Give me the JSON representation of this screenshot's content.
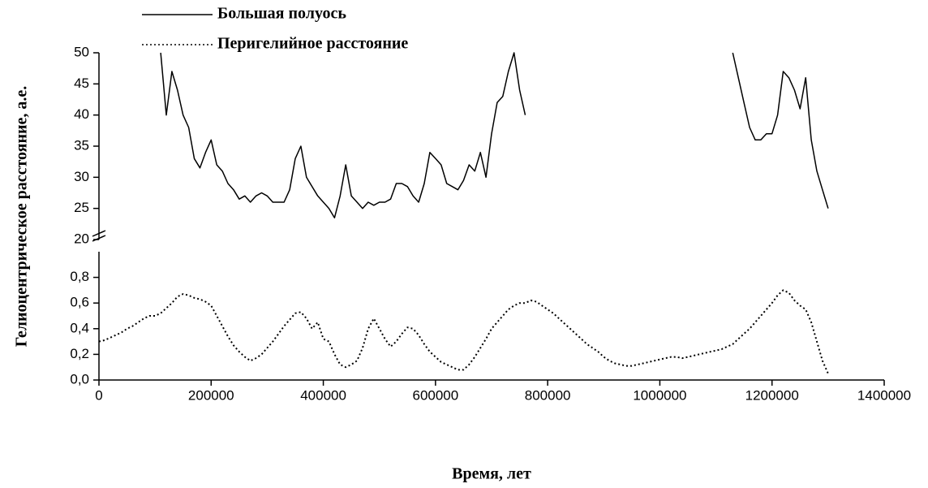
{
  "chart_data": [
    {
      "type": "line",
      "xlim": [
        0,
        1400000
      ],
      "ylim": [
        20,
        50
      ],
      "yticks": [
        20,
        25,
        30,
        35,
        40,
        45,
        50
      ],
      "x": [
        0,
        10000,
        20000,
        30000,
        40000,
        50000,
        60000,
        70000,
        80000,
        90000,
        100000,
        110000,
        120000,
        130000,
        140000,
        150000,
        160000,
        170000,
        180000,
        190000,
        200000,
        210000,
        220000,
        230000,
        240000,
        250000,
        260000,
        270000,
        280000,
        290000,
        300000,
        310000,
        320000,
        330000,
        340000,
        350000,
        360000,
        370000,
        380000,
        390000,
        400000,
        410000,
        420000,
        430000,
        440000,
        450000,
        460000,
        470000,
        480000,
        490000,
        500000,
        510000,
        520000,
        530000,
        540000,
        550000,
        560000,
        570000,
        580000,
        590000,
        600000,
        610000,
        620000,
        630000,
        640000,
        650000,
        660000,
        670000,
        680000,
        690000,
        700000,
        710000,
        720000,
        730000,
        740000,
        750000,
        760000,
        770000,
        780000,
        790000,
        800000,
        810000,
        820000,
        830000,
        840000,
        850000,
        860000,
        870000,
        880000,
        890000,
        900000,
        910000,
        920000,
        930000,
        940000,
        950000,
        960000,
        970000,
        980000,
        990000,
        1000000,
        1010000,
        1020000,
        1030000,
        1040000,
        1050000,
        1060000,
        1070000,
        1080000,
        1090000,
        1100000,
        1110000,
        1120000,
        1130000,
        1140000,
        1150000,
        1160000,
        1170000,
        1180000,
        1190000,
        1200000,
        1210000,
        1220000,
        1230000,
        1240000,
        1250000,
        1260000,
        1270000,
        1280000,
        1290000,
        1300000
      ],
      "series": [
        {
          "name": "Большая полуось",
          "color": "#000000",
          "line_style": "solid",
          "values": [
            null,
            null,
            null,
            null,
            null,
            null,
            null,
            null,
            null,
            null,
            null,
            50,
            40,
            47,
            44,
            40,
            38,
            33,
            31.5,
            34,
            36,
            32,
            31,
            29,
            28,
            26.5,
            27,
            26,
            27,
            27.5,
            27,
            26,
            26,
            26,
            28,
            33,
            35,
            30,
            28.5,
            27,
            26,
            25,
            23.5,
            27,
            32,
            27,
            26,
            25,
            26,
            25.5,
            26,
            26,
            26.5,
            29,
            29,
            28.5,
            27,
            26,
            29,
            34,
            33,
            32,
            29,
            28.5,
            28,
            29.5,
            32,
            31,
            34,
            30,
            37,
            42,
            43,
            47,
            50,
            44,
            40,
            null,
            null,
            null,
            null,
            null,
            null,
            null,
            null,
            null,
            null,
            null,
            null,
            null,
            null,
            null,
            null,
            null,
            null,
            null,
            null,
            null,
            null,
            null,
            null,
            null,
            null,
            null,
            null,
            null,
            null,
            null,
            null,
            null,
            null,
            null,
            null,
            50,
            46,
            42,
            38,
            36,
            36,
            37,
            37,
            40,
            47,
            46,
            44,
            41,
            46,
            36,
            31,
            28,
            25
          ]
        }
      ]
    },
    {
      "type": "line",
      "xlabel": "Время, лет",
      "ylabel": "Гелиоцентрическое расстояние, а.е.",
      "xlim": [
        0,
        1400000
      ],
      "xticks": [
        0,
        200000,
        400000,
        600000,
        800000,
        1000000,
        1200000,
        1400000
      ],
      "ylim": [
        0,
        1.0
      ],
      "yticks": [
        {
          "value": 0,
          "label": "0,0"
        },
        {
          "value": 0.2,
          "label": "0,2"
        },
        {
          "value": 0.4,
          "label": "0,4"
        },
        {
          "value": 0.6,
          "label": "0,6"
        },
        {
          "value": 0.8,
          "label": "0,8"
        }
      ],
      "x": [
        0,
        10000,
        20000,
        30000,
        40000,
        50000,
        60000,
        70000,
        80000,
        90000,
        100000,
        110000,
        120000,
        130000,
        140000,
        150000,
        160000,
        170000,
        180000,
        190000,
        200000,
        210000,
        220000,
        230000,
        240000,
        250000,
        260000,
        270000,
        280000,
        290000,
        300000,
        310000,
        320000,
        330000,
        340000,
        350000,
        360000,
        370000,
        380000,
        390000,
        400000,
        410000,
        420000,
        430000,
        440000,
        450000,
        460000,
        470000,
        480000,
        490000,
        500000,
        510000,
        520000,
        530000,
        540000,
        550000,
        560000,
        570000,
        580000,
        590000,
        600000,
        610000,
        620000,
        630000,
        640000,
        650000,
        660000,
        670000,
        680000,
        690000,
        700000,
        710000,
        720000,
        730000,
        740000,
        750000,
        760000,
        770000,
        780000,
        790000,
        800000,
        810000,
        820000,
        830000,
        840000,
        850000,
        860000,
        870000,
        880000,
        890000,
        900000,
        910000,
        920000,
        930000,
        940000,
        950000,
        960000,
        970000,
        980000,
        990000,
        1000000,
        1010000,
        1020000,
        1030000,
        1040000,
        1050000,
        1060000,
        1070000,
        1080000,
        1090000,
        1100000,
        1110000,
        1120000,
        1130000,
        1140000,
        1150000,
        1160000,
        1170000,
        1180000,
        1190000,
        1200000,
        1210000,
        1220000,
        1230000,
        1240000,
        1250000,
        1260000,
        1270000,
        1280000,
        1290000,
        1300000
      ],
      "series": [
        {
          "name": "Перигелийное расстояние",
          "color": "#000000",
          "line_style": "dotted",
          "values": [
            0.3,
            0.31,
            0.33,
            0.35,
            0.37,
            0.4,
            0.42,
            0.45,
            0.48,
            0.5,
            0.5,
            0.52,
            0.56,
            0.6,
            0.65,
            0.67,
            0.66,
            0.64,
            0.63,
            0.61,
            0.58,
            0.5,
            0.42,
            0.34,
            0.27,
            0.22,
            0.18,
            0.15,
            0.17,
            0.2,
            0.25,
            0.3,
            0.36,
            0.42,
            0.47,
            0.52,
            0.53,
            0.48,
            0.4,
            0.45,
            0.32,
            0.3,
            0.2,
            0.12,
            0.1,
            0.12,
            0.15,
            0.25,
            0.4,
            0.48,
            0.4,
            0.32,
            0.26,
            0.3,
            0.36,
            0.41,
            0.4,
            0.35,
            0.28,
            0.22,
            0.18,
            0.14,
            0.12,
            0.1,
            0.08,
            0.08,
            0.12,
            0.18,
            0.25,
            0.32,
            0.4,
            0.45,
            0.5,
            0.55,
            0.58,
            0.6,
            0.6,
            0.62,
            0.61,
            0.58,
            0.55,
            0.52,
            0.48,
            0.44,
            0.4,
            0.36,
            0.32,
            0.28,
            0.25,
            0.22,
            0.18,
            0.15,
            0.13,
            0.12,
            0.11,
            0.11,
            0.12,
            0.13,
            0.14,
            0.15,
            0.16,
            0.17,
            0.18,
            0.18,
            0.17,
            0.18,
            0.19,
            0.2,
            0.21,
            0.22,
            0.23,
            0.24,
            0.26,
            0.28,
            0.32,
            0.36,
            0.4,
            0.45,
            0.5,
            0.55,
            0.6,
            0.66,
            0.7,
            0.68,
            0.62,
            0.58,
            0.55,
            0.45,
            0.3,
            0.15,
            0.05
          ]
        }
      ]
    }
  ]
}
